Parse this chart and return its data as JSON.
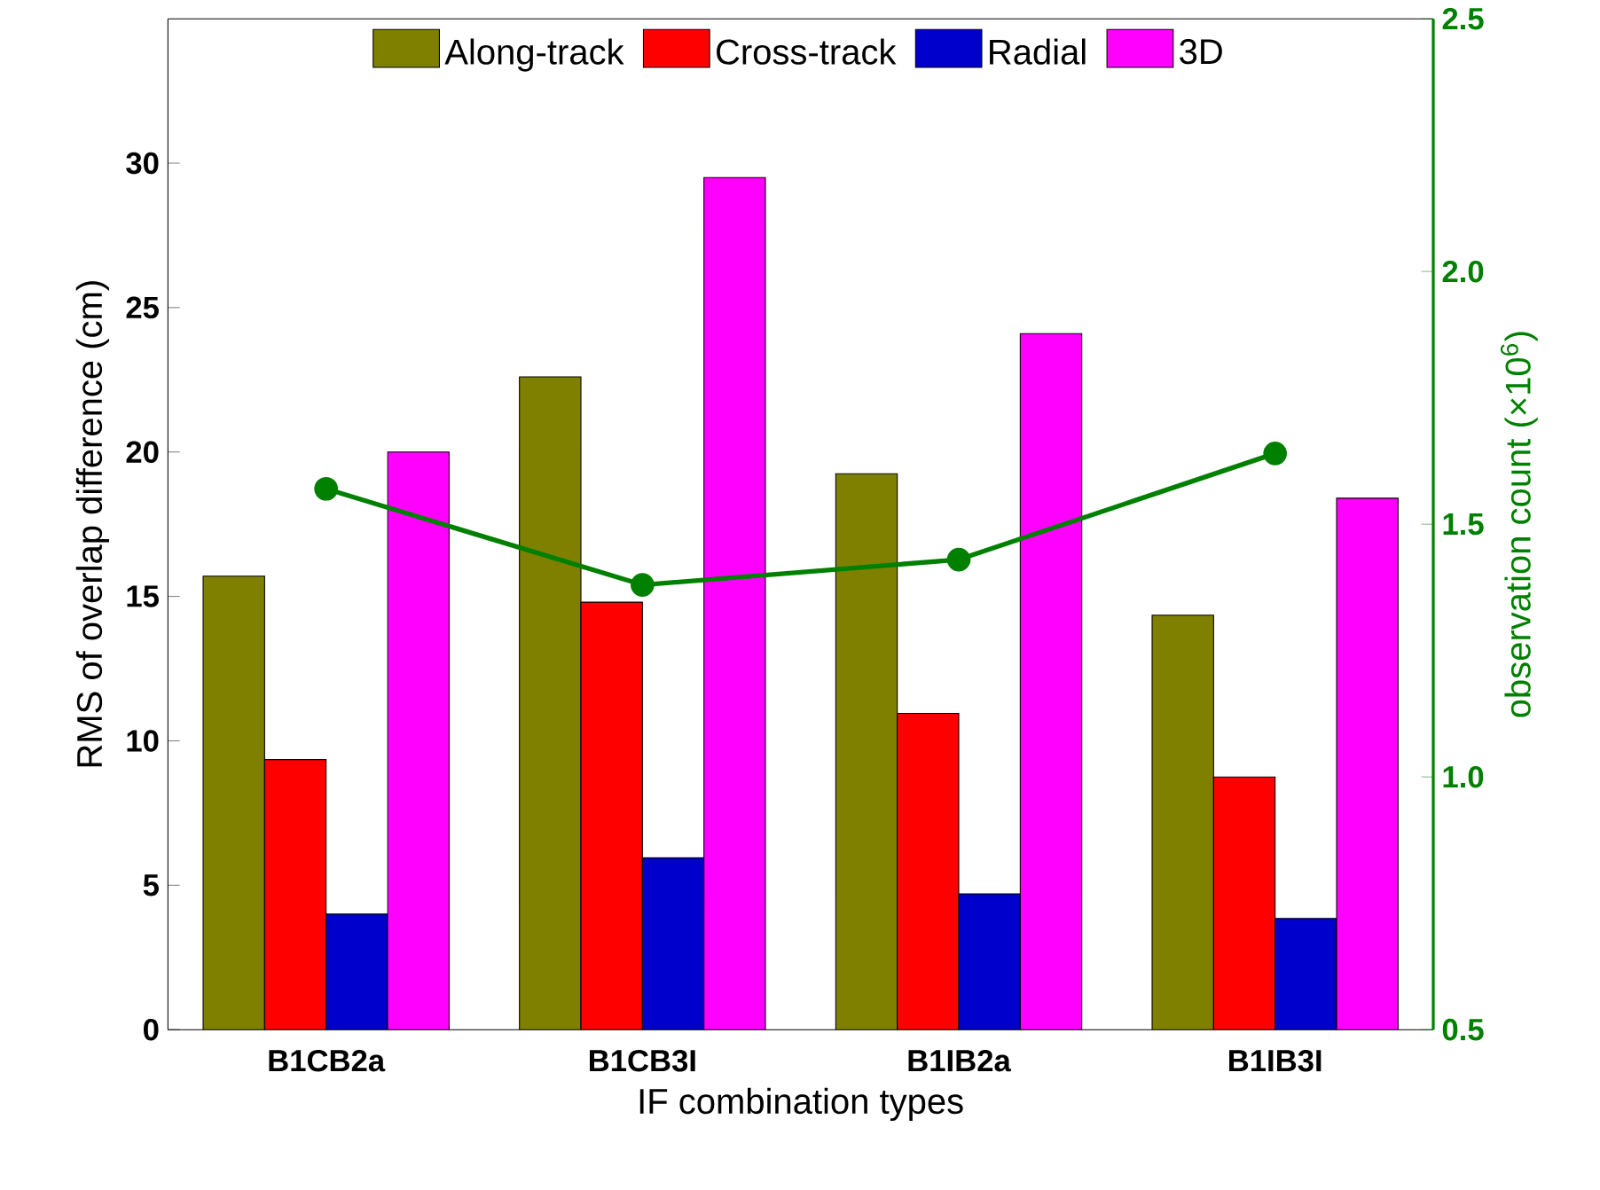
{
  "chart_data": {
    "type": "bar",
    "xlabel": "IF combination types",
    "ylabel": "RMS of overlap difference (cm)",
    "y2label": "observation count (×10$^{6}$)",
    "categories": [
      "B1CB2a",
      "B1CB3I",
      "B1IB2a",
      "B1IB3I"
    ],
    "series": [
      {
        "name": "Along-track",
        "color": "#808000",
        "values": [
          15.7,
          22.6,
          19.25,
          14.35
        ]
      },
      {
        "name": "Cross-track",
        "color": "#ff0000",
        "values": [
          9.35,
          14.8,
          10.95,
          8.75
        ]
      },
      {
        "name": "Radial",
        "color": "#0000cc",
        "values": [
          4.0,
          5.95,
          4.7,
          3.85
        ]
      },
      {
        "name": "3D",
        "color": "#ff00ff",
        "values": [
          20.0,
          29.5,
          24.1,
          18.4
        ]
      },
      {
        "type": "line",
        "axis": "y2",
        "color": "#008000",
        "marker": "circle",
        "values": [
          1.57,
          1.38,
          1.43,
          1.64
        ]
      }
    ],
    "ylim": [
      0,
      35
    ],
    "yticks": [
      0,
      5,
      10,
      15,
      20,
      25,
      30
    ],
    "y2lim": [
      0.5,
      2.5
    ],
    "y2ticks": [
      {
        "value": 0.5,
        "label": "0.5"
      },
      {
        "value": 1.0,
        "label": "1.0"
      },
      {
        "value": 1.5,
        "label": "1.5"
      },
      {
        "value": 2.0,
        "label": "2.0"
      },
      {
        "value": 2.5,
        "label": "2.5"
      }
    ],
    "legend": "top",
    "grid": false
  }
}
